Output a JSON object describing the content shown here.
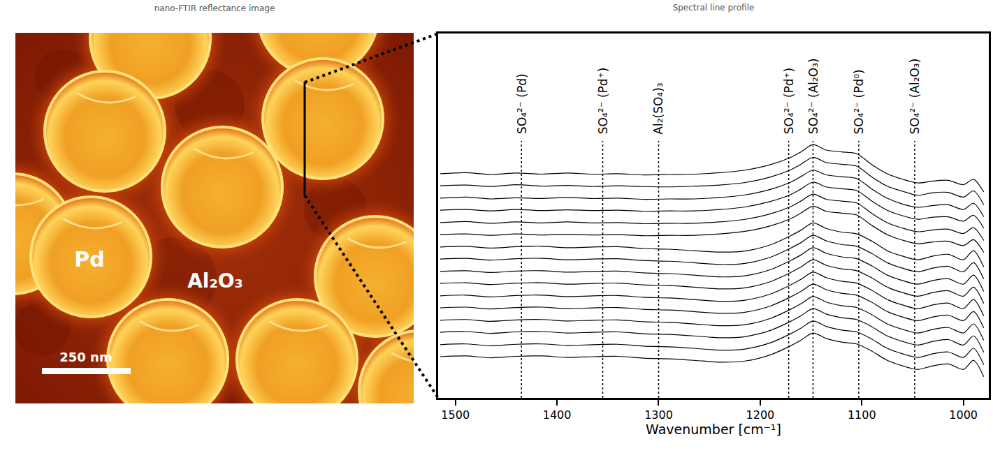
{
  "image": {
    "title": "nano-FTIR reflectance image",
    "labels": [
      "Pd",
      "Al₂O₃"
    ],
    "scale_bar": "250 nm"
  },
  "chart_data": {
    "type": "line",
    "title": "Spectral line profile",
    "x_label": "Wavenumber [cm⁻¹]",
    "xlim": [
      1517,
      975
    ],
    "xticks": [
      1500,
      1400,
      1300,
      1200,
      1100,
      1000
    ],
    "ylim": [
      0,
      100
    ],
    "yticks": [],
    "tick_labels": "x",
    "grid": false,
    "color": "#000000",
    "x": [
      1515,
      1490,
      1465,
      1440,
      1415,
      1390,
      1365,
      1340,
      1315,
      1290,
      1265,
      1240,
      1215,
      1190,
      1170,
      1160,
      1148,
      1135,
      1120,
      1105,
      1090,
      1075,
      1060,
      1045,
      1030,
      1015,
      1000,
      990,
      980
    ],
    "series": [
      {
        "values": [
          61.5,
          61.8,
          61.3,
          61.7,
          61.4,
          61.7,
          61.4,
          61.5,
          61.2,
          61.3,
          61.4,
          61.8,
          62.5,
          64.0,
          66.0,
          67.5,
          69.5,
          68.0,
          67.5,
          67.0,
          64.0,
          61.5,
          60.0,
          59.0,
          59.5,
          59.7,
          58.5,
          60.0,
          56.5
        ]
      },
      {
        "values": [
          58.2,
          58.4,
          58.0,
          58.5,
          58.1,
          58.3,
          58.0,
          58.2,
          58.0,
          57.9,
          58.1,
          58.4,
          59.1,
          60.6,
          62.6,
          64.1,
          66.0,
          64.6,
          64.1,
          63.6,
          60.6,
          58.1,
          56.7,
          55.6,
          56.3,
          56.4,
          55.1,
          56.8,
          53.0
        ]
      },
      {
        "values": [
          54.8,
          55.1,
          54.6,
          54.9,
          54.7,
          55.0,
          54.7,
          54.8,
          54.5,
          54.6,
          54.6,
          55.0,
          55.7,
          57.2,
          59.2,
          60.7,
          62.5,
          61.2,
          60.7,
          60.2,
          57.3,
          54.8,
          53.2,
          52.3,
          52.8,
          53.0,
          51.7,
          53.4,
          49.7
        ]
      },
      {
        "values": [
          51.5,
          51.7,
          51.3,
          51.7,
          51.4,
          51.6,
          51.4,
          51.5,
          51.2,
          51.3,
          51.3,
          51.7,
          52.4,
          53.9,
          55.8,
          57.3,
          59.2,
          57.9,
          57.4,
          56.9,
          54.0,
          51.5,
          50.0,
          49.0,
          49.6,
          49.7,
          48.5,
          50.1,
          46.6
        ]
      },
      {
        "values": [
          48.1,
          48.4,
          47.9,
          48.3,
          48.0,
          48.3,
          48.0,
          48.1,
          47.8,
          47.9,
          47.9,
          48.3,
          49.0,
          50.5,
          52.5,
          54.0,
          55.9,
          54.5,
          54.0,
          53.5,
          50.6,
          48.1,
          46.6,
          45.6,
          46.1,
          46.3,
          45.1,
          46.7,
          43.2
        ]
      },
      {
        "values": [
          44.8,
          45.0,
          44.6,
          45.0,
          44.7,
          44.9,
          44.7,
          44.8,
          44.5,
          44.6,
          44.6,
          45.0,
          45.7,
          47.2,
          49.2,
          50.7,
          52.6,
          51.2,
          50.7,
          50.2,
          47.3,
          44.8,
          43.3,
          42.3,
          42.8,
          43.0,
          41.8,
          43.4,
          39.9
        ]
      },
      {
        "values": [
          41.4,
          41.6,
          41.1,
          41.5,
          41.6,
          41.2,
          41.4,
          41.5,
          41.0,
          40.8,
          40.4,
          40.0,
          40.3,
          42.0,
          44.5,
          46.0,
          48.0,
          46.5,
          45.5,
          45.0,
          43.0,
          40.4,
          38.9,
          37.9,
          38.9,
          39.4,
          37.9,
          40.4,
          35.9
        ]
      },
      {
        "values": [
          38.1,
          38.3,
          37.8,
          38.2,
          38.3,
          37.9,
          38.1,
          38.2,
          37.7,
          37.5,
          37.1,
          36.6,
          36.9,
          38.6,
          41.1,
          42.6,
          44.6,
          43.1,
          42.1,
          41.6,
          39.6,
          37.1,
          35.6,
          34.6,
          35.6,
          36.1,
          34.6,
          37.1,
          32.6
        ]
      },
      {
        "values": [
          34.7,
          34.9,
          34.4,
          34.8,
          34.9,
          34.5,
          34.7,
          34.8,
          34.3,
          34.1,
          33.7,
          33.2,
          33.5,
          35.2,
          37.7,
          39.2,
          41.2,
          39.7,
          38.7,
          38.2,
          36.2,
          33.7,
          32.2,
          31.2,
          32.2,
          32.7,
          31.2,
          33.7,
          29.2
        ]
      },
      {
        "values": [
          31.4,
          31.6,
          31.1,
          31.5,
          31.6,
          31.2,
          31.4,
          31.5,
          31.0,
          30.8,
          30.4,
          29.9,
          30.2,
          31.9,
          34.4,
          35.9,
          37.9,
          36.4,
          35.4,
          34.9,
          32.9,
          30.4,
          28.9,
          27.9,
          28.9,
          29.4,
          27.9,
          30.4,
          25.9
        ]
      },
      {
        "values": [
          28.0,
          28.2,
          27.7,
          28.1,
          28.2,
          27.8,
          28.0,
          28.1,
          27.6,
          27.4,
          27.0,
          26.5,
          26.8,
          28.5,
          31.0,
          32.5,
          34.5,
          33.0,
          32.0,
          31.5,
          29.5,
          27.0,
          25.5,
          24.5,
          25.5,
          26.0,
          24.5,
          27.0,
          22.5
        ]
      },
      {
        "values": [
          24.7,
          24.9,
          24.4,
          24.8,
          24.9,
          24.5,
          24.7,
          24.8,
          24.3,
          24.1,
          23.7,
          23.2,
          23.5,
          25.2,
          27.7,
          29.2,
          31.2,
          29.7,
          28.7,
          28.2,
          26.2,
          23.7,
          22.2,
          21.2,
          22.2,
          22.7,
          21.2,
          23.7,
          19.2
        ]
      },
      {
        "values": [
          21.3,
          21.5,
          21.0,
          21.4,
          21.5,
          21.1,
          21.3,
          21.4,
          20.9,
          20.7,
          20.3,
          19.8,
          20.1,
          21.8,
          24.3,
          25.8,
          27.8,
          26.3,
          25.3,
          24.8,
          22.8,
          20.3,
          18.8,
          17.8,
          18.8,
          19.3,
          17.8,
          20.3,
          15.8
        ]
      },
      {
        "values": [
          18.0,
          18.2,
          17.7,
          18.1,
          18.2,
          17.8,
          18.0,
          18.1,
          17.6,
          17.4,
          17.0,
          16.5,
          16.8,
          18.5,
          21.0,
          22.5,
          24.5,
          23.0,
          22.0,
          21.5,
          19.5,
          17.0,
          15.5,
          14.5,
          15.5,
          16.0,
          14.5,
          17.0,
          12.5
        ]
      },
      {
        "values": [
          14.6,
          14.8,
          14.3,
          14.7,
          14.8,
          14.4,
          14.6,
          14.7,
          14.2,
          14.0,
          13.6,
          13.1,
          13.4,
          15.1,
          17.6,
          19.1,
          21.1,
          19.6,
          18.6,
          18.1,
          16.1,
          13.6,
          12.1,
          11.1,
          12.1,
          12.6,
          11.1,
          13.6,
          9.1
        ]
      },
      {
        "values": [
          11.3,
          11.5,
          11.0,
          11.4,
          11.5,
          11.1,
          11.3,
          11.4,
          10.9,
          10.7,
          10.3,
          9.8,
          10.1,
          11.8,
          14.3,
          15.8,
          17.8,
          16.3,
          15.3,
          14.8,
          12.8,
          10.3,
          8.8,
          7.8,
          8.8,
          9.3,
          7.8,
          10.3,
          5.8
        ]
      }
    ],
    "annotations": [
      {
        "x": 1435,
        "text": "SO₄²⁻ (Pd)"
      },
      {
        "x": 1355,
        "text": "SO₄²⁻ (Pd⁺)"
      },
      {
        "x": 1300,
        "text": "Al₂(SO₄)₃"
      },
      {
        "x": 1172,
        "text": "SO₄²⁻ (Pd⁺)"
      },
      {
        "x": 1148,
        "text": "SO₄²⁻ (Al₂O₃)"
      },
      {
        "x": 1103,
        "text": "SO₄²⁻ (Pd⁰)"
      },
      {
        "x": 1048,
        "text": "SO₄²⁻ (Al₂O₃)"
      }
    ]
  }
}
